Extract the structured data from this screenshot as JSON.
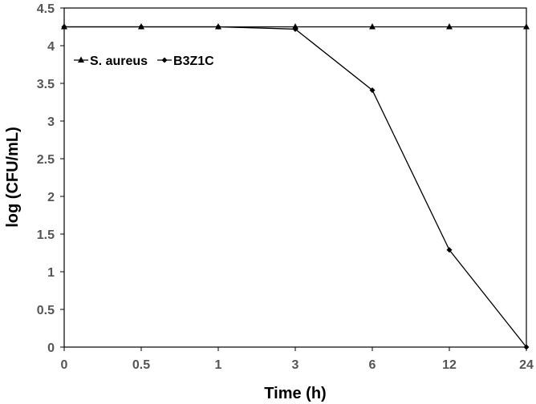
{
  "chart_data": {
    "type": "line",
    "xlabel": "Time (h)",
    "ylabel": "log (CFU/mL)",
    "categories": [
      "0",
      "0.5",
      "1",
      "3",
      "6",
      "12",
      "24"
    ],
    "ylim": [
      0,
      4.5
    ],
    "yticks": [
      "0",
      "0.5",
      "1",
      "1.5",
      "2",
      "2.5",
      "3",
      "3.5",
      "4",
      "4.5"
    ],
    "legend_position": "top-left",
    "grid": false,
    "series": [
      {
        "name": "S. aureus",
        "marker": "triangle",
        "color": "#000000",
        "values": [
          4.25,
          4.25,
          4.25,
          4.25,
          4.25,
          4.25,
          4.25
        ]
      },
      {
        "name": "B3Z1C",
        "marker": "diamond",
        "color": "#000000",
        "values": [
          4.25,
          4.25,
          4.25,
          4.22,
          3.41,
          1.29,
          0.0
        ]
      }
    ]
  }
}
